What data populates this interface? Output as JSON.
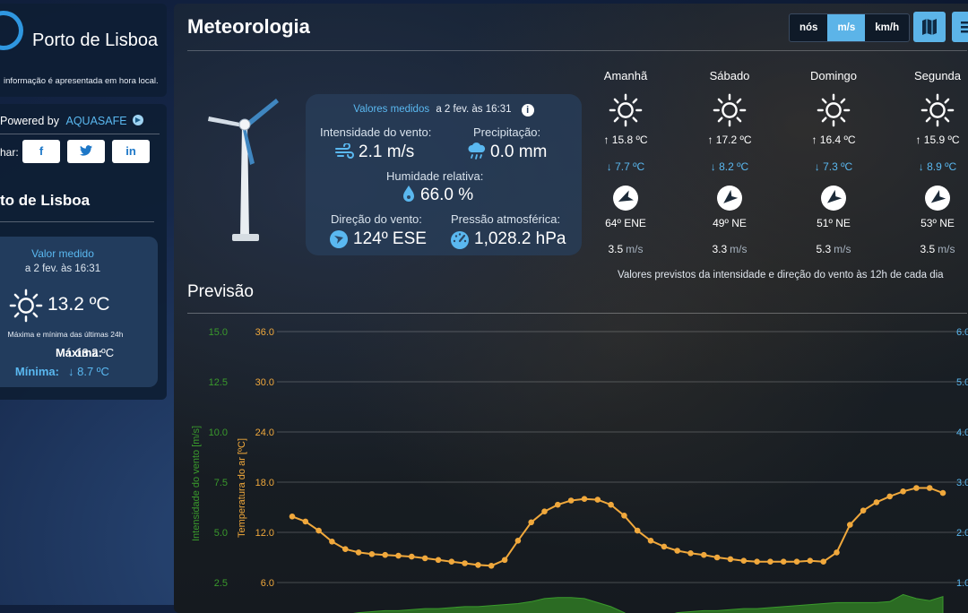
{
  "sidebar": {
    "logo_title": "Porto de Lisboa",
    "note": "informação é apresentada em hora local.",
    "powered_label": "Powered by",
    "powered_brand": "AQUASAFE",
    "share_label": "har:",
    "share_buttons": [
      {
        "label": "f",
        "icon": "facebook-icon"
      },
      {
        "label": "🐦",
        "icon": "twitter-icon"
      },
      {
        "label": "in",
        "icon": "linkedin-icon"
      }
    ],
    "station_title": "to de Lisboa",
    "current": {
      "label": "Valor medido",
      "date": "a 2 fev. às 16:31",
      "temp": "13.2 ºC",
      "note": "Máxima e mínima das últimas 24h",
      "max_label": "Máxima:",
      "max_value": "↑ 13.2 ºC",
      "min_label": "Mínima:",
      "min_value": "↓ 8.7 ºC"
    }
  },
  "main": {
    "title": "Meteorologia",
    "units": [
      {
        "label": "nós",
        "active": false
      },
      {
        "label": "m/s",
        "active": true
      },
      {
        "label": "km/h",
        "active": false
      }
    ],
    "measured": {
      "header_label": "Valores medidos",
      "header_date": "a 2 fev. às 16:31",
      "wind_speed_label": "Intensidade do vento:",
      "wind_speed_value": "2.1 m/s",
      "precip_label": "Precipitação:",
      "precip_value": "0.0 mm",
      "humidity_label": "Humidade relativa:",
      "humidity_value": "66.0 %",
      "wind_dir_label": "Direção do vento:",
      "wind_dir_value": "124º ESE",
      "pressure_label": "Pressão atmosférica:",
      "pressure_value": "1,028.2 hPa"
    },
    "forecast": [
      {
        "day": "Amanhã",
        "max": "↑ 15.8 ºC",
        "min": "↓ 7.7 ºC",
        "dir": "64º ENE",
        "speed": "3.5",
        "unit": "m/s",
        "dir_deg": 64
      },
      {
        "day": "Sábado",
        "max": "↑ 17.2 ºC",
        "min": "↓ 8.2 ºC",
        "dir": "49º NE",
        "speed": "3.3",
        "unit": "m/s",
        "dir_deg": 49
      },
      {
        "day": "Domingo",
        "max": "↑ 16.4 ºC",
        "min": "↓ 7.3 ºC",
        "dir": "51º NE",
        "speed": "5.3",
        "unit": "m/s",
        "dir_deg": 51
      },
      {
        "day": "Segunda",
        "max": "↑ 15.9 ºC",
        "min": "↓ 8.9 ºC",
        "dir": "53º NE",
        "speed": "3.5",
        "unit": "m/s",
        "dir_deg": 53
      }
    ],
    "forecast_note": "Valores previstos da intensidade e direção do vento às 12h de cada dia",
    "forecast_title": "Previsão"
  },
  "colors": {
    "accent": "#5cb4e8",
    "link": "#5ab8f0",
    "temp_line": "#f0a83c",
    "wind_fill": "#3a8a2a",
    "right_axis": "#5ab8f0"
  },
  "chart_data": {
    "type": "line",
    "series": [
      {
        "axis": "temperature",
        "values": [
          13.9,
          13.3,
          12.2,
          10.9,
          10.0,
          9.6,
          9.4,
          9.3,
          9.2,
          9.1,
          8.9,
          8.7,
          8.5,
          8.3,
          8.1,
          8.0,
          8.7,
          11.0,
          13.2,
          14.5,
          15.3,
          15.8,
          16.0,
          15.9,
          15.3,
          14.0,
          12.2,
          11.0,
          10.3,
          9.8,
          9.5,
          9.3,
          9.0,
          8.8,
          8.6,
          8.5,
          8.5,
          8.5,
          8.5,
          8.6,
          8.5,
          9.6,
          12.9,
          14.6,
          15.6,
          16.3,
          16.9,
          17.3,
          17.3,
          16.7
        ]
      },
      {
        "axis": "wind",
        "values": [
          0.6,
          0.5,
          0.7,
          0.8,
          0.9,
          1.0,
          1.05,
          1.1,
          1.1,
          1.15,
          1.2,
          1.2,
          1.25,
          1.3,
          1.3,
          1.35,
          1.4,
          1.45,
          1.55,
          1.7,
          1.75,
          1.75,
          1.7,
          1.5,
          1.3,
          1.0,
          0.6,
          0.6,
          0.8,
          1.0,
          1.05,
          1.1,
          1.1,
          1.15,
          1.2,
          1.2,
          1.25,
          1.3,
          1.35,
          1.4,
          1.45,
          1.5,
          1.5,
          1.5,
          1.5,
          1.55,
          1.9,
          1.7,
          1.6,
          1.8
        ]
      }
    ],
    "wind_axis": {
      "label": "Intensidade do vento [m/s]",
      "ticks": [
        "15.0",
        "12.5",
        "10.0",
        "7.5",
        "5.0",
        "2.5"
      ],
      "ylim": [
        0,
        15
      ]
    },
    "temp_axis": {
      "label": "Temperatura do ar [ºC]",
      "ticks": [
        "36.0",
        "30.0",
        "24.0",
        "18.0",
        "12.0",
        "6.0"
      ],
      "ylim": [
        0,
        36
      ]
    },
    "right_axis": {
      "ticks": [
        "6.0",
        "5.0",
        "4.0",
        "3.0",
        "2.0",
        "1.0"
      ]
    },
    "grid": true
  }
}
